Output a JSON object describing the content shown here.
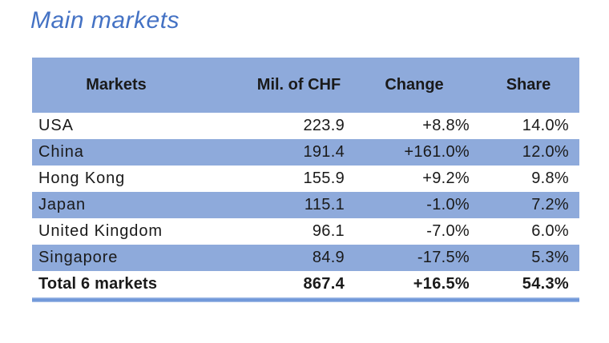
{
  "title": "Main markets",
  "colors": {
    "accent_blue": "#8EAADB",
    "title_blue": "#4472C4",
    "text_black": "#1A1A1A",
    "background": "#FFFFFF"
  },
  "table": {
    "columns": [
      "Markets",
      "Mil. of CHF",
      "Change",
      "Share"
    ],
    "rows": [
      {
        "market": "USA",
        "chf": "223.9",
        "change": "+8.8%",
        "share": "14.0%"
      },
      {
        "market": "China",
        "chf": "191.4",
        "change": "+161.0%",
        "share": "12.0%"
      },
      {
        "market": "Hong Kong",
        "chf": "155.9",
        "change": "+9.2%",
        "share": "9.8%"
      },
      {
        "market": "Japan",
        "chf": "115.1",
        "change": "-1.0%",
        "share": "7.2%"
      },
      {
        "market": "United Kingdom",
        "chf": "96.1",
        "change": "-7.0%",
        "share": "6.0%"
      },
      {
        "market": "Singapore",
        "chf": "84.9",
        "change": "-17.5%",
        "share": "5.3%"
      }
    ],
    "total_row": {
      "market": "Total 6 markets",
      "chf": "867.4",
      "change": "+16.5%",
      "share": "54.3%"
    }
  }
}
